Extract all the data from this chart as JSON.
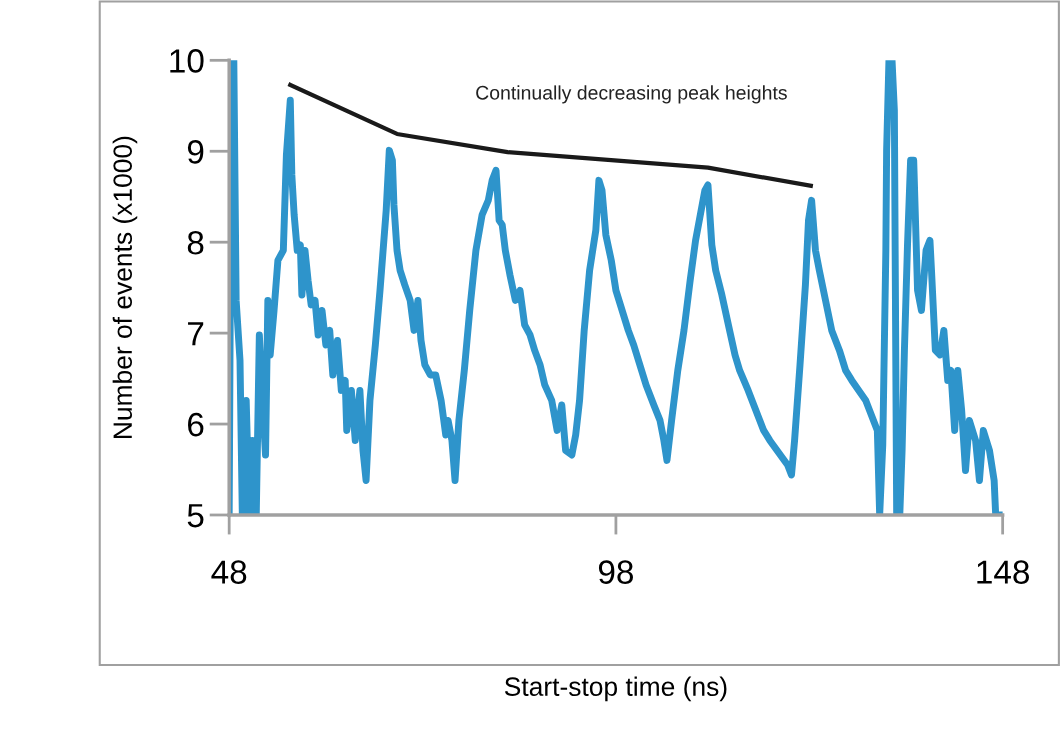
{
  "chart_data": {
    "type": "line",
    "xlabel": "Start-stop time (ns)",
    "ylabel": "Number of events (x1000)",
    "annotations": [
      "Continually decreasing peak heights"
    ],
    "xlim": [
      48,
      148
    ],
    "xticks": [
      48,
      98,
      148
    ],
    "ylim": [
      5,
      10
    ],
    "yticks": [
      5,
      6,
      7,
      8,
      9,
      10
    ],
    "grid": false,
    "legend": false,
    "marker": "none",
    "series": [
      {
        "color": "#2e94cb",
        "x": [
          48.0,
          48.3,
          48.6,
          48.9,
          49.4,
          49.7,
          50.2,
          50.6,
          51.0,
          51.5,
          51.9,
          52.3,
          52.7,
          53.0,
          53.3,
          53.8,
          54.1,
          54.3,
          55.0,
          55.4,
          55.9,
          56.1,
          56.4,
          56.8,
          57.2,
          57.4,
          57.8,
          58.2,
          58.6,
          59.1,
          59.5,
          60.0,
          60.5,
          61.0,
          61.4,
          62.0,
          62.5,
          63.0,
          63.2,
          63.8,
          64.3,
          64.9,
          65.3,
          65.7,
          66.2,
          66.9,
          67.5,
          68.3,
          68.7,
          69.1,
          69.3,
          69.7,
          70.1,
          70.7,
          71.4,
          71.9,
          72.4,
          72.8,
          73.3,
          74.0,
          74.7,
          75.4,
          76.0,
          76.3,
          76.8,
          77.2,
          77.7,
          78.4,
          79.1,
          79.9,
          80.7,
          81.5,
          82.0,
          82.5,
          82.9,
          83.3,
          83.7,
          84.3,
          85.0,
          85.6,
          86.2,
          86.9,
          87.5,
          88.2,
          88.8,
          89.7,
          90.4,
          91.0,
          91.5,
          92.3,
          92.8,
          93.3,
          93.9,
          94.6,
          95.4,
          95.8,
          96.2,
          96.7,
          97.4,
          98.0,
          98.8,
          99.6,
          100.3,
          101.1,
          101.9,
          102.9,
          103.7,
          104.2,
          104.6,
          105.2,
          106.0,
          106.8,
          107.6,
          108.3,
          109.5,
          109.9,
          110.4,
          110.9,
          111.7,
          112.7,
          113.4,
          114.0,
          115.1,
          116.1,
          117.1,
          117.9,
          120.2,
          120.7,
          121.1,
          121.8,
          122.5,
          122.9,
          123.3,
          123.8,
          124.3,
          125.1,
          125.9,
          126.9,
          127.7,
          128.5,
          130.3,
          130.8,
          131.8,
          132.1,
          132.5,
          132.9,
          133.0,
          133.3,
          133.7,
          134.0,
          134.3,
          134.7,
          135.0,
          135.3,
          135.7,
          136.1,
          136.5,
          137.0,
          137.5,
          138.1,
          138.6,
          138.8,
          139.3,
          139.9,
          140.4,
          140.9,
          141.3,
          141.8,
          142.2,
          142.7,
          143.2,
          143.7,
          144.5,
          145.0,
          145.5,
          146.3,
          146.9,
          147.1,
          147.7
        ],
        "values": [
          5.0,
          10.0,
          10.0,
          7.36,
          6.7,
          5.0,
          6.26,
          5.0,
          5.82,
          5.0,
          6.98,
          6.26,
          5.66,
          7.36,
          6.76,
          7.25,
          7.58,
          7.8,
          7.91,
          8.96,
          9.56,
          8.74,
          8.3,
          7.91,
          7.97,
          7.42,
          7.91,
          7.58,
          7.31,
          7.36,
          6.98,
          7.25,
          6.87,
          7.03,
          6.54,
          6.92,
          6.37,
          6.48,
          5.93,
          6.37,
          5.82,
          6.37,
          5.71,
          5.38,
          6.26,
          6.87,
          7.47,
          8.35,
          9.01,
          8.9,
          8.41,
          7.91,
          7.69,
          7.53,
          7.36,
          7.03,
          7.36,
          6.92,
          6.65,
          6.54,
          6.54,
          6.26,
          5.88,
          6.04,
          5.82,
          5.38,
          6.04,
          6.59,
          7.25,
          7.91,
          8.3,
          8.46,
          8.68,
          8.79,
          8.24,
          8.19,
          7.91,
          7.64,
          7.36,
          7.47,
          7.09,
          6.98,
          6.81,
          6.65,
          6.43,
          6.26,
          5.93,
          6.21,
          5.71,
          5.66,
          5.88,
          6.26,
          7.03,
          7.69,
          8.13,
          8.68,
          8.57,
          8.08,
          7.8,
          7.47,
          7.25,
          7.03,
          6.87,
          6.65,
          6.43,
          6.21,
          6.04,
          5.82,
          5.6,
          6.04,
          6.59,
          7.03,
          7.58,
          8.02,
          8.57,
          8.63,
          7.97,
          7.69,
          7.42,
          7.03,
          6.76,
          6.59,
          6.37,
          6.15,
          5.93,
          5.82,
          5.55,
          5.44,
          5.82,
          6.65,
          7.53,
          8.24,
          8.46,
          7.91,
          7.69,
          7.36,
          7.03,
          6.81,
          6.59,
          6.48,
          6.26,
          6.15,
          5.93,
          5.0,
          5.77,
          7.91,
          9.01,
          10.0,
          10.0,
          9.45,
          5.0,
          5.0,
          5.71,
          6.81,
          7.97,
          8.9,
          8.9,
          7.47,
          7.25,
          7.91,
          8.02,
          7.69,
          6.81,
          6.76,
          7.03,
          6.48,
          6.59,
          5.93,
          6.59,
          6.15,
          5.49,
          6.04,
          5.82,
          5.38,
          5.93,
          5.71,
          5.38,
          5.0,
          5.0
        ]
      },
      {
        "color": "#1a1a1a",
        "x": [
          55.9,
          69.7,
          84.0,
          109.9,
          123.2
        ],
        "values": [
          9.73,
          9.19,
          8.99,
          8.82,
          8.62
        ]
      }
    ]
  }
}
